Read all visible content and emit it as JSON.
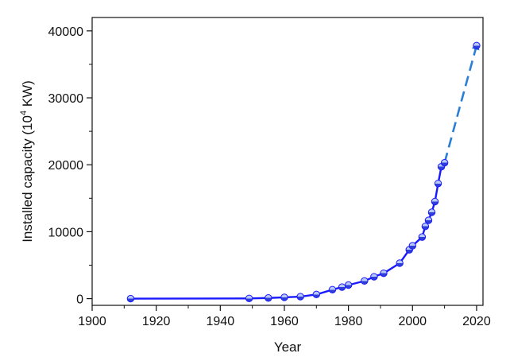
{
  "chart_data": {
    "type": "line",
    "title": "",
    "xlabel": "Year",
    "ylabel_main": "Installed capacity (10",
    "ylabel_exp": "4",
    "ylabel_unit": " KW)",
    "xlim": [
      1900,
      2022
    ],
    "ylim": [
      -1000,
      42000
    ],
    "xticks": [
      1900,
      1920,
      1940,
      1960,
      1980,
      2000,
      2020
    ],
    "yticks": [
      0,
      10000,
      20000,
      30000,
      40000
    ],
    "grid": false,
    "legend": "none",
    "series": [
      {
        "style": "solid",
        "color": "#1a1aff",
        "x": [
          1912,
          1949,
          1955,
          1960,
          1965,
          1970,
          1975,
          1978,
          1980,
          1985,
          1988,
          1991,
          1996,
          1999,
          2000,
          2003,
          2004,
          2005,
          2006,
          2007,
          2008,
          2009,
          2010
        ],
        "y": [
          0,
          36,
          100,
          190,
          300,
          620,
          1340,
          1730,
          2030,
          2640,
          3270,
          3790,
          5300,
          7300,
          7900,
          9200,
          10800,
          11700,
          12900,
          14500,
          17200,
          19700,
          20300
        ]
      },
      {
        "style": "dashed",
        "color": "#2a7fd4",
        "x": [
          2010,
          2020
        ],
        "y": [
          20300,
          37800
        ]
      }
    ],
    "markers": {
      "x": [
        1912,
        1949,
        1955,
        1960,
        1965,
        1970,
        1975,
        1978,
        1980,
        1985,
        1988,
        1991,
        1996,
        1999,
        2000,
        2003,
        2004,
        2005,
        2006,
        2007,
        2008,
        2009,
        2010,
        2020
      ],
      "y": [
        0,
        36,
        100,
        190,
        300,
        620,
        1340,
        1730,
        2030,
        2640,
        3270,
        3790,
        5300,
        7300,
        7900,
        9200,
        10800,
        11700,
        12900,
        14500,
        17200,
        19700,
        20300,
        37800
      ]
    }
  }
}
